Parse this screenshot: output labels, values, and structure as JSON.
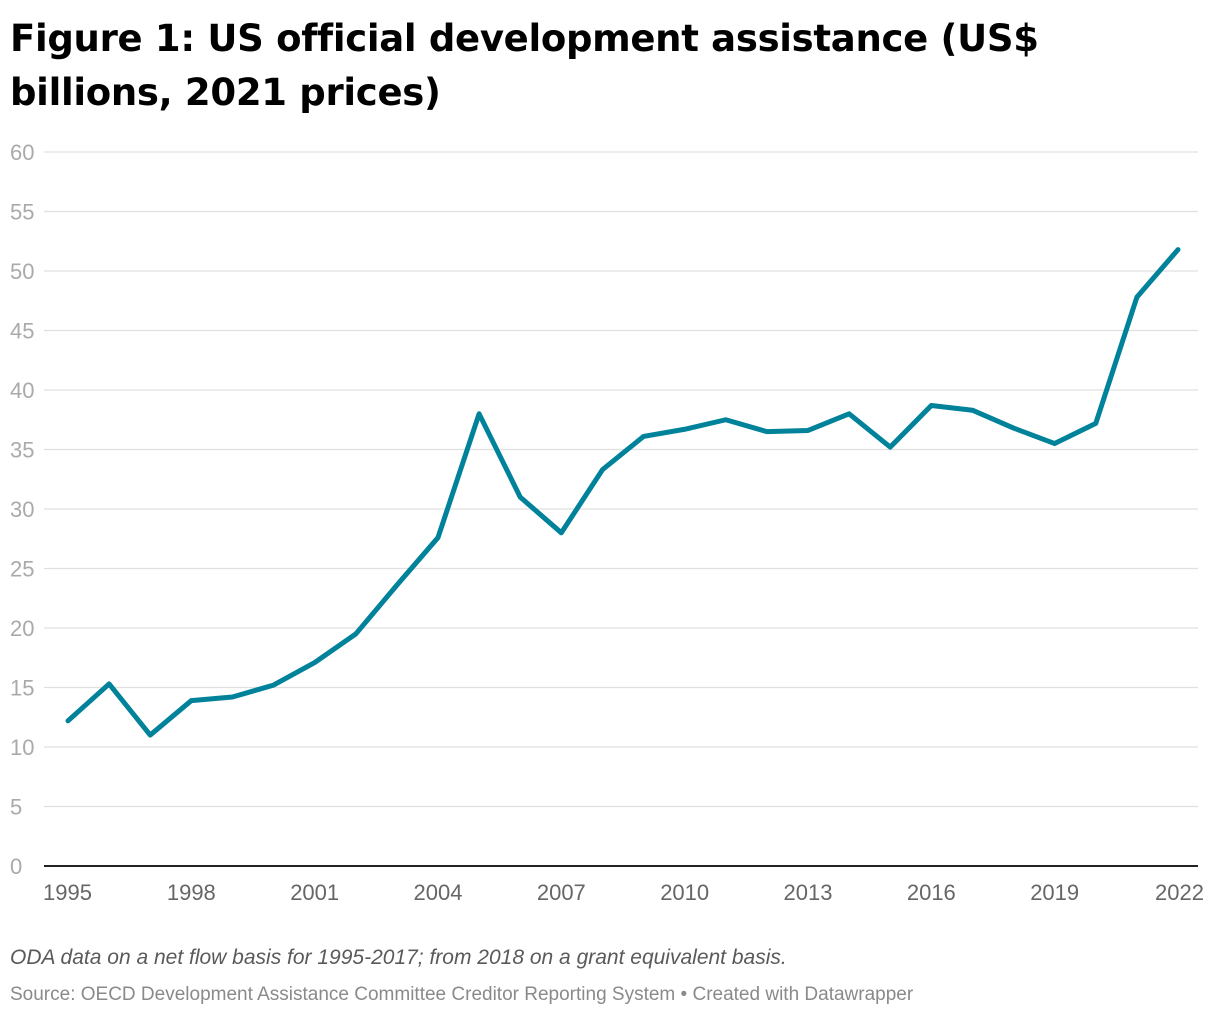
{
  "header": {
    "title": "Figure 1: US official development assistance (US$ billions, 2021 prices)"
  },
  "footer": {
    "note": "ODA data on a net flow basis for 1995-2017; from 2018 on a grant equivalent basis.",
    "source": "Source: OECD Development Assistance Committee Creditor Reporting System • Created with Datawrapper"
  },
  "colors": {
    "line": "#00829a",
    "grid": "#e0e0e0",
    "axis": "#222222",
    "y_tick_text": "#aaaaaa",
    "x_tick_text": "#666666"
  },
  "chart_data": {
    "type": "line",
    "title": "Figure 1: US official development assistance (US$ billions, 2021 prices)",
    "xlabel": "",
    "ylabel": "",
    "xlim": [
      1995,
      2022
    ],
    "ylim": [
      0,
      60
    ],
    "grid": true,
    "x_ticks": [
      1995,
      1998,
      2001,
      2004,
      2007,
      2010,
      2013,
      2016,
      2019,
      2022
    ],
    "y_ticks": [
      0,
      5,
      10,
      15,
      20,
      25,
      30,
      35,
      40,
      45,
      50,
      55,
      60
    ],
    "x": [
      1995,
      1996,
      1997,
      1998,
      1999,
      2000,
      2001,
      2002,
      2003,
      2004,
      2005,
      2006,
      2007,
      2008,
      2009,
      2010,
      2011,
      2012,
      2013,
      2014,
      2015,
      2016,
      2017,
      2018,
      2019,
      2020,
      2021,
      2022
    ],
    "series": [
      {
        "values": [
          12.2,
          15.3,
          11.0,
          13.9,
          14.2,
          15.2,
          17.1,
          19.5,
          23.6,
          27.6,
          38.0,
          31.0,
          28.0,
          33.3,
          36.1,
          36.7,
          37.5,
          36.5,
          36.6,
          38.0,
          35.2,
          38.7,
          38.3,
          36.8,
          35.5,
          37.2,
          47.8,
          51.8
        ]
      }
    ]
  }
}
